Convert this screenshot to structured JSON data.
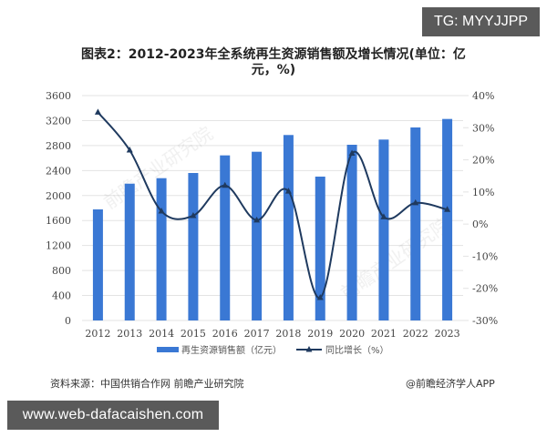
{
  "overlay": {
    "top_badge": "TG: MYYJJPP",
    "bottom_badge": "www.web-dafacaishen.com"
  },
  "footer": {
    "source": "资料来源：中国供销合作网 前瞻产业研究院",
    "credit": "@前瞻经济学人APP"
  },
  "colors": {
    "bar": "#3a78d4",
    "line": "#1f3a5f",
    "grid": "#e3e3e3",
    "axis_text": "#444444"
  },
  "chart_data": {
    "type": "bar+line",
    "title": "图表2：2012-2023年全系统再生资源销售额及增长情况(单位：亿元，%)",
    "title_lines": [
      "图表2：2012-2023年全系统再生资源销售额及增长情况(单位：亿",
      "元，%)"
    ],
    "categories": [
      "2012",
      "2013",
      "2014",
      "2015",
      "2016",
      "2017",
      "2018",
      "2019",
      "2020",
      "2021",
      "2022",
      "2023"
    ],
    "series": [
      {
        "name": "再生资源销售额（亿元）",
        "type": "bar",
        "axis": "left",
        "values": [
          1778,
          2190,
          2278,
          2361,
          2643,
          2701,
          2969,
          2303,
          2813,
          2896,
          3090,
          3226
        ]
      },
      {
        "name": "同比增长（%）",
        "type": "line",
        "axis": "right",
        "values": [
          34.8,
          23.0,
          4.0,
          2.6,
          12.0,
          1.2,
          10.2,
          -22.9,
          22.0,
          2.2,
          6.6,
          4.5
        ]
      }
    ],
    "left_axis": {
      "ylim": [
        0,
        3600
      ],
      "ticks": [
        "0",
        "400",
        "800",
        "1200",
        "1600",
        "2000",
        "2400",
        "2800",
        "3200",
        "3600"
      ]
    },
    "right_axis": {
      "ylim": [
        -30,
        40
      ],
      "ticks": [
        "-30%",
        "-20%",
        "-10%",
        "0%",
        "10%",
        "20%",
        "30%",
        "40%"
      ]
    },
    "grid": true,
    "legend_position": "bottom",
    "legend": [
      "再生资源销售额（亿元）",
      "同比增长（%）"
    ]
  }
}
